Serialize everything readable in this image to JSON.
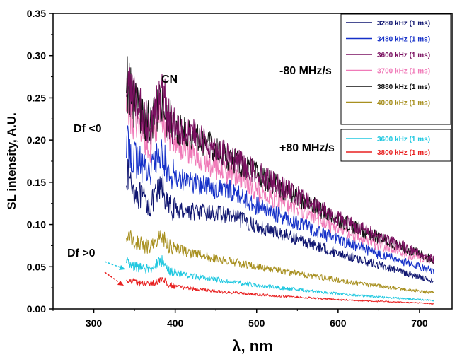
{
  "chart_data": {
    "type": "line",
    "title": "",
    "xlabel": "λ, nm",
    "ylabel": "SL intensity, A.U.",
    "xlim": [
      250,
      740
    ],
    "ylim": [
      0,
      0.35
    ],
    "xticks": [
      300,
      400,
      500,
      600,
      700
    ],
    "yticks": [
      0.0,
      0.05,
      0.1,
      0.15,
      0.2,
      0.25,
      0.3,
      0.35
    ],
    "grid": false,
    "x": [
      340,
      350,
      360,
      370,
      380,
      385,
      390,
      400,
      420,
      450,
      470,
      500,
      550,
      600,
      650,
      700,
      718
    ],
    "series": [
      {
        "name": "3280 kHz (1 ms)",
        "color": "#0f1570",
        "group": "-80 MHz/s",
        "values": [
          0.162,
          0.14,
          0.13,
          0.122,
          0.14,
          0.145,
          0.122,
          0.118,
          0.116,
          0.113,
          0.11,
          0.098,
          0.083,
          0.066,
          0.052,
          0.038,
          0.033
        ]
      },
      {
        "name": "3480 kHz (1 ms)",
        "color": "#1530c8",
        "group": "-80 MHz/s",
        "values": [
          0.196,
          0.178,
          0.17,
          0.165,
          0.18,
          0.185,
          0.162,
          0.158,
          0.15,
          0.143,
          0.14,
          0.122,
          0.102,
          0.082,
          0.065,
          0.05,
          0.045
        ]
      },
      {
        "name": "3600 kHz (1 ms)",
        "color": "#7a1060",
        "group": "-80 MHz/s",
        "values": [
          0.272,
          0.245,
          0.228,
          0.222,
          0.245,
          0.255,
          0.228,
          0.218,
          0.208,
          0.19,
          0.177,
          0.162,
          0.134,
          0.108,
          0.086,
          0.066,
          0.058
        ]
      },
      {
        "name": "3700 kHz (1 ms)",
        "color": "#f07ab8",
        "group": "-80 MHz/s",
        "values": [
          0.25,
          0.22,
          0.205,
          0.198,
          0.22,
          0.228,
          0.205,
          0.198,
          0.185,
          0.168,
          0.158,
          0.14,
          0.118,
          0.095,
          0.076,
          0.06,
          0.055
        ]
      },
      {
        "name": "3880 kHz (1 ms)",
        "color": "#101010",
        "group": "-80 MHz/s",
        "values": [
          0.27,
          0.243,
          0.226,
          0.22,
          0.243,
          0.252,
          0.226,
          0.215,
          0.205,
          0.188,
          0.176,
          0.16,
          0.132,
          0.106,
          0.084,
          0.065,
          0.057
        ]
      },
      {
        "name": "4000 kHz (1 ms)",
        "color": "#a89020",
        "group": "-80 MHz/s",
        "values": [
          0.088,
          0.08,
          0.076,
          0.074,
          0.083,
          0.086,
          0.076,
          0.072,
          0.066,
          0.06,
          0.056,
          0.05,
          0.042,
          0.034,
          0.027,
          0.021,
          0.019
        ]
      },
      {
        "name": "3600 kHz (1 ms)",
        "color": "#20c8e0",
        "group": "+80 MHz/s",
        "values": [
          0.056,
          0.05,
          0.048,
          0.047,
          0.055,
          0.058,
          0.046,
          0.043,
          0.039,
          0.035,
          0.032,
          0.028,
          0.023,
          0.018,
          0.014,
          0.011,
          0.01
        ]
      },
      {
        "name": "3800 kHz (1 ms)",
        "color": "#e82020",
        "group": "+80 MHz/s",
        "values": [
          0.035,
          0.032,
          0.03,
          0.029,
          0.034,
          0.036,
          0.029,
          0.027,
          0.024,
          0.021,
          0.019,
          0.017,
          0.014,
          0.011,
          0.009,
          0.007,
          0.006
        ]
      }
    ],
    "legend_groups": [
      "-80 MHz/s",
      "+80 MHz/s"
    ],
    "legend_placement": "top-right",
    "annotations": [
      "CN",
      "Df <0",
      "Df >0"
    ]
  }
}
